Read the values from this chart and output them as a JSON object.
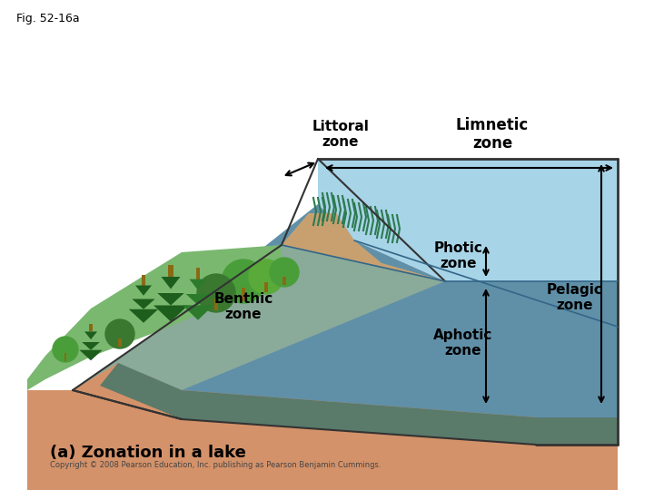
{
  "fig_label": "Fig. 52-16a",
  "title": "(a) Zonation in a lake",
  "copyright": "Copyright © 2008 Pearson Education, Inc. publishing as Pearson Benjamin Cummings.",
  "labels": {
    "littoral": "Littoral\nzone",
    "limnetic": "Limnetic\nzone",
    "photic": "Photic\nzone",
    "benthic": "Benthic\nzone",
    "aphotic": "Aphotic\nzone",
    "pelagic": "Pelagic\nzone"
  },
  "colors": {
    "background": "#ffffff",
    "land_brown": "#d4926a",
    "shore_tan": "#c8a070",
    "water_light_blue": "#a8d4e8",
    "water_medium_blue": "#7ab8d4",
    "water_deep": "#6090a8",
    "sediment": "#8aaa9a",
    "dark_sediment": "#5a7a6a",
    "green_land": "#7ab870",
    "dark_green": "#3a7830",
    "tree_dark": "#1d5e1d",
    "tree_mid": "#2d7a2d",
    "tree_light": "#4a9e3a",
    "trunk": "#8B6914",
    "aquatic": "#2d7a50",
    "outline": "#333333",
    "water_line": "#336688"
  }
}
